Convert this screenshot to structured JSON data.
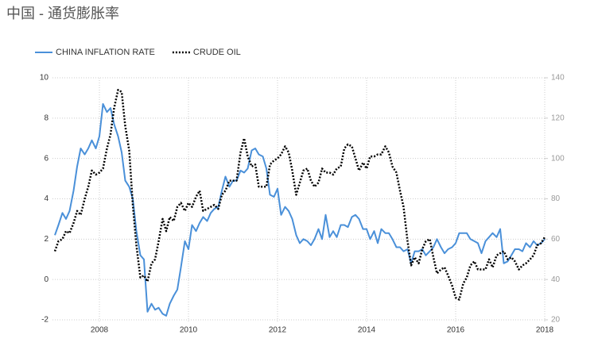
{
  "chart_data": {
    "type": "line",
    "title": "中国 - 通货膨胀率",
    "x": [
      2007.0,
      2007.08,
      2007.17,
      2007.25,
      2007.33,
      2007.42,
      2007.5,
      2007.58,
      2007.67,
      2007.75,
      2007.83,
      2007.92,
      2008.0,
      2008.08,
      2008.17,
      2008.25,
      2008.33,
      2008.42,
      2008.5,
      2008.58,
      2008.67,
      2008.75,
      2008.83,
      2008.92,
      2009.0,
      2009.08,
      2009.17,
      2009.25,
      2009.33,
      2009.42,
      2009.5,
      2009.58,
      2009.67,
      2009.75,
      2009.83,
      2009.92,
      2010.0,
      2010.08,
      2010.17,
      2010.25,
      2010.33,
      2010.42,
      2010.5,
      2010.58,
      2010.67,
      2010.75,
      2010.83,
      2010.92,
      2011.0,
      2011.08,
      2011.17,
      2011.25,
      2011.33,
      2011.42,
      2011.5,
      2011.58,
      2011.67,
      2011.75,
      2011.83,
      2011.92,
      2012.0,
      2012.08,
      2012.17,
      2012.25,
      2012.33,
      2012.42,
      2012.5,
      2012.58,
      2012.67,
      2012.75,
      2012.83,
      2012.92,
      2013.0,
      2013.08,
      2013.17,
      2013.25,
      2013.33,
      2013.42,
      2013.5,
      2013.58,
      2013.67,
      2013.75,
      2013.83,
      2013.92,
      2014.0,
      2014.08,
      2014.17,
      2014.25,
      2014.33,
      2014.42,
      2014.5,
      2014.58,
      2014.67,
      2014.75,
      2014.83,
      2014.92,
      2015.0,
      2015.08,
      2015.17,
      2015.25,
      2015.33,
      2015.42,
      2015.5,
      2015.58,
      2015.67,
      2015.75,
      2015.83,
      2015.92,
      2016.0,
      2016.08,
      2016.17,
      2016.25,
      2016.33,
      2016.42,
      2016.5,
      2016.58,
      2016.67,
      2016.75,
      2016.83,
      2016.92,
      2017.0,
      2017.08,
      2017.17,
      2017.25,
      2017.33,
      2017.42,
      2017.5,
      2017.58,
      2017.67,
      2017.75,
      2017.83,
      2017.92,
      2018.0
    ],
    "series": [
      {
        "name": "CHINA INFLATION RATE",
        "color": "#4a90d9",
        "axis": "y",
        "values": [
          2.2,
          2.7,
          3.3,
          3.0,
          3.4,
          4.4,
          5.6,
          6.5,
          6.2,
          6.5,
          6.9,
          6.5,
          7.1,
          8.7,
          8.3,
          8.5,
          7.7,
          7.1,
          6.3,
          4.9,
          4.6,
          4.0,
          2.4,
          1.2,
          1.0,
          -1.6,
          -1.2,
          -1.5,
          -1.4,
          -1.7,
          -1.8,
          -1.2,
          -0.8,
          -0.5,
          0.6,
          1.9,
          1.5,
          2.7,
          2.4,
          2.8,
          3.1,
          2.9,
          3.3,
          3.5,
          3.6,
          4.4,
          5.1,
          4.6,
          4.9,
          4.9,
          5.4,
          5.3,
          5.5,
          6.4,
          6.5,
          6.2,
          6.1,
          5.5,
          4.2,
          4.1,
          4.5,
          3.2,
          3.6,
          3.4,
          3.0,
          2.2,
          1.8,
          2.0,
          1.9,
          1.7,
          2.0,
          2.5,
          2.0,
          3.2,
          2.1,
          2.4,
          2.1,
          2.7,
          2.7,
          2.6,
          3.1,
          3.2,
          3.0,
          2.5,
          2.5,
          2.0,
          2.4,
          1.8,
          2.5,
          2.3,
          2.3,
          2.0,
          1.6,
          1.6,
          1.4,
          1.5,
          0.8,
          1.4,
          1.4,
          1.5,
          1.2,
          1.4,
          1.6,
          2.0,
          1.6,
          1.3,
          1.5,
          1.6,
          1.8,
          2.3,
          2.3,
          2.3,
          2.0,
          1.9,
          1.8,
          1.3,
          1.9,
          2.1,
          2.3,
          2.1,
          2.5,
          0.8,
          0.9,
          1.2,
          1.5,
          1.5,
          1.4,
          1.8,
          1.6,
          1.9,
          1.7,
          1.8,
          2.0
        ]
      },
      {
        "name": "CRUDE OIL",
        "color": "#000000",
        "axis": "y2",
        "dashed": true,
        "values": [
          54,
          59,
          60,
          64,
          63,
          68,
          74,
          72,
          80,
          86,
          94,
          92,
          93,
          95,
          105,
          112,
          125,
          134,
          133,
          116,
          104,
          77,
          57,
          41,
          42,
          39,
          48,
          50,
          59,
          70,
          64,
          71,
          69,
          76,
          78,
          74,
          78,
          76,
          81,
          84,
          74,
          75,
          76,
          77,
          75,
          82,
          84,
          89,
          89,
          89,
          103,
          110,
          101,
          96,
          97,
          86,
          86,
          86,
          97,
          99,
          100,
          102,
          106,
          103,
          94,
          82,
          88,
          94,
          95,
          89,
          86,
          88,
          95,
          93,
          93,
          92,
          95,
          96,
          105,
          107,
          106,
          100,
          94,
          98,
          95,
          101,
          101,
          102,
          102,
          106,
          103,
          96,
          93,
          84,
          76,
          59,
          47,
          51,
          48,
          55,
          59,
          60,
          51,
          43,
          45,
          46,
          42,
          37,
          31,
          30,
          38,
          41,
          47,
          49,
          45,
          45,
          45,
          50,
          46,
          52,
          53,
          54,
          50,
          51,
          49,
          45,
          47,
          48,
          50,
          52,
          57,
          58,
          61
        ]
      }
    ],
    "xlim": [
      2007,
      2018
    ],
    "xticks": [
      2008,
      2010,
      2012,
      2014,
      2016,
      2018
    ],
    "ylim": [
      -2,
      10
    ],
    "yticks": [
      -2,
      0,
      2,
      4,
      6,
      8,
      10
    ],
    "y2lim": [
      20,
      140
    ],
    "y2ticks": [
      20,
      40,
      60,
      80,
      100,
      120,
      140
    ],
    "grid": true
  }
}
